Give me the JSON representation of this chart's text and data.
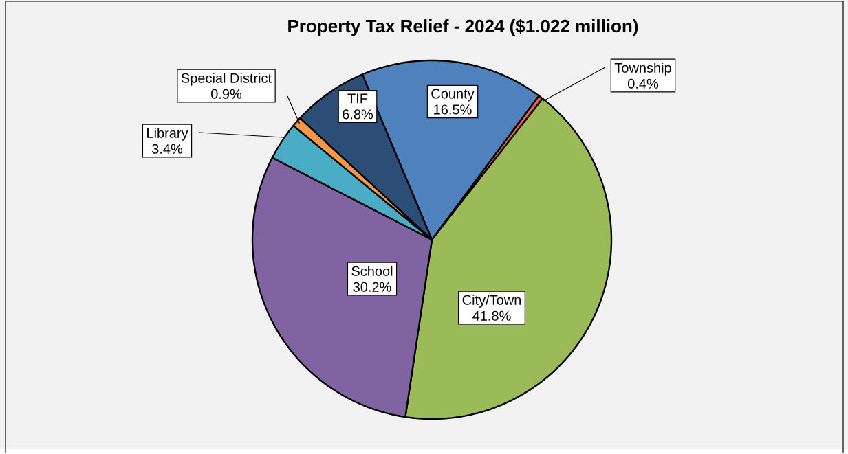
{
  "chart_data": {
    "type": "pie",
    "title": "Property Tax Relief - 2024 ($1.022 million)",
    "categories": [
      "County",
      "Township",
      "City/Town",
      "School",
      "Library",
      "Special District",
      "TIF"
    ],
    "values": [
      16.5,
      0.4,
      41.8,
      30.2,
      3.4,
      0.9,
      6.8
    ],
    "value_labels": [
      "16.5%",
      "0.4%",
      "41.8%",
      "30.2%",
      "3.4%",
      "0.9%",
      "6.8%"
    ],
    "colors": [
      "#4f81bd",
      "#e8603c",
      "#9bbb59",
      "#8064a2",
      "#4bacc6",
      "#f79646",
      "#2c4d75"
    ]
  }
}
